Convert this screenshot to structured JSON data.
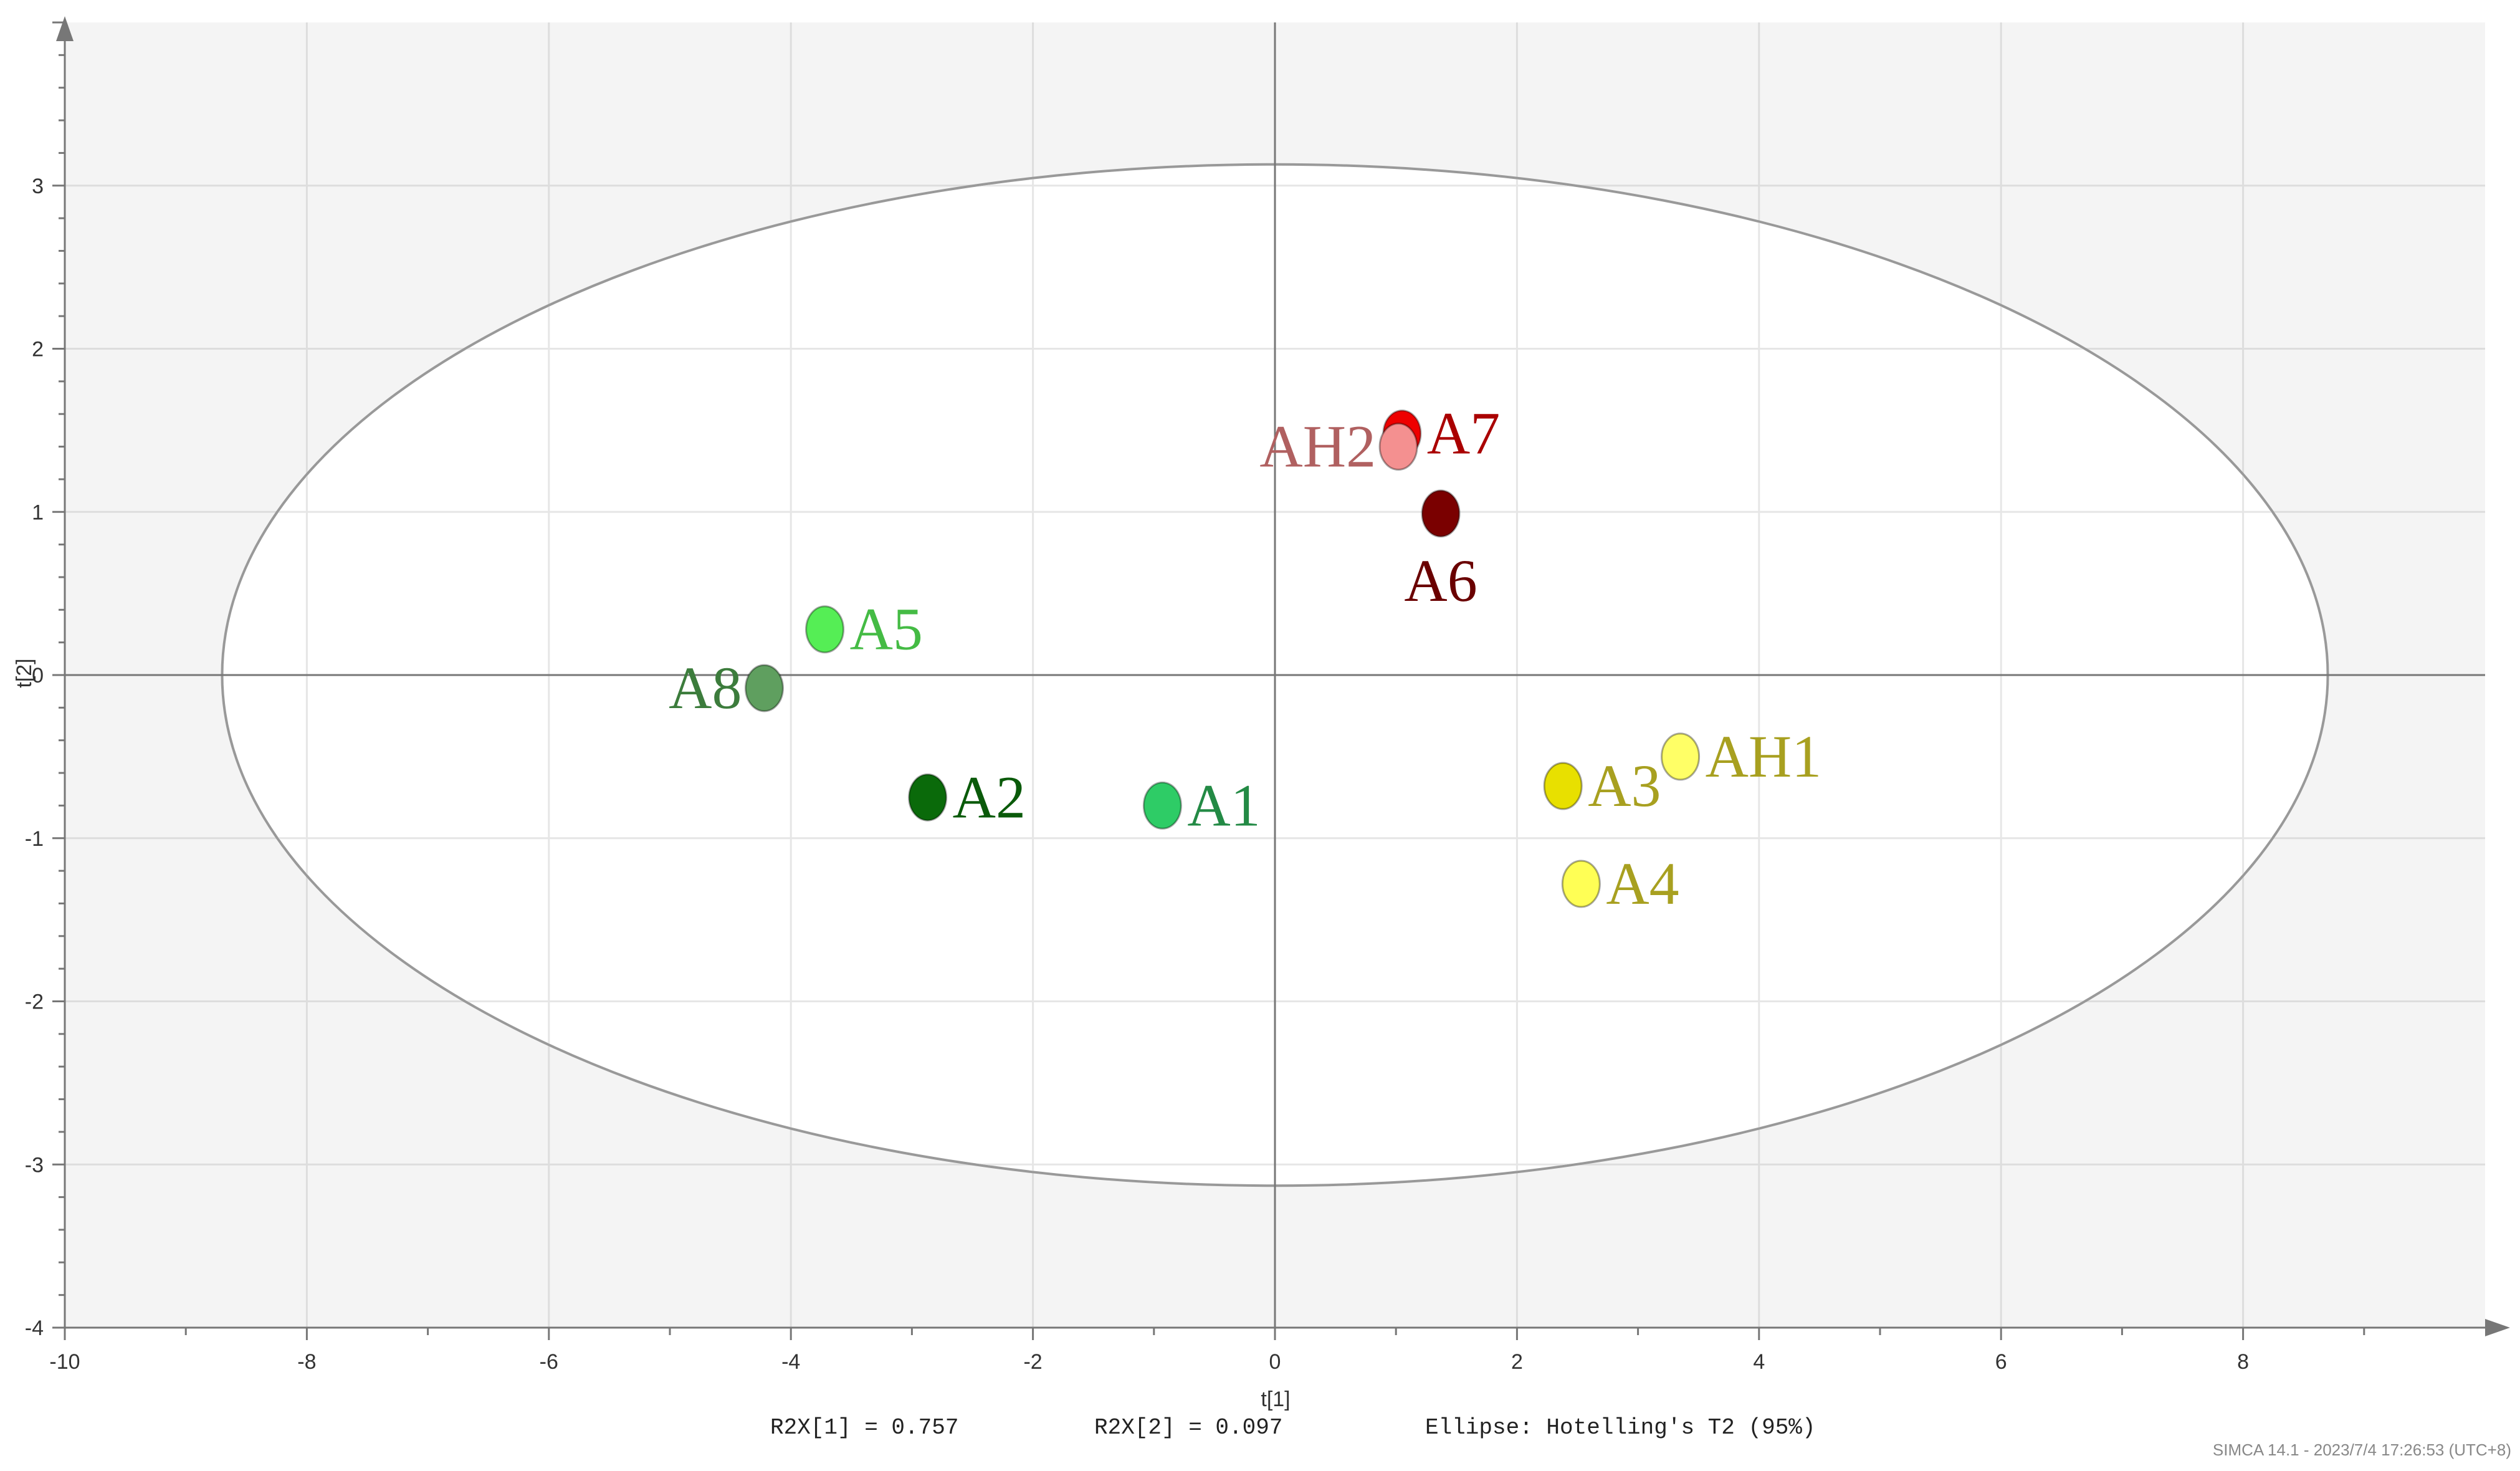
{
  "chart_data": {
    "type": "scatter",
    "title": "",
    "xlabel": "t[1]",
    "ylabel": "t[2]",
    "xlim": [
      -10,
      10
    ],
    "ylim": [
      -4,
      4
    ],
    "x_ticks": [
      -10,
      -8,
      -6,
      -4,
      -2,
      0,
      2,
      4,
      6,
      8
    ],
    "y_ticks": [
      -4,
      -3,
      -2,
      -1,
      0,
      1,
      2,
      3
    ],
    "grid": true,
    "ellipse": {
      "center": [
        0,
        0
      ],
      "semi_axis_x": 8.7,
      "semi_axis_y": 3.13,
      "label": "Ellipse: Hotelling's T2 (95%)"
    },
    "points": [
      {
        "name": "A7",
        "x": 1.05,
        "y": 1.48,
        "color": "#ee0000",
        "label_color": "#aa0000",
        "label_pos": "right"
      },
      {
        "name": "AH2",
        "x": 1.02,
        "y": 1.4,
        "color": "#f49090",
        "label_color": "#b06060",
        "label_pos": "left"
      },
      {
        "name": "A6",
        "x": 1.37,
        "y": 0.99,
        "color": "#7a0000",
        "label_color": "#6a0000",
        "label_pos": "below"
      },
      {
        "name": "A5",
        "x": -3.72,
        "y": 0.28,
        "color": "#55ee55",
        "label_color": "#44bb44",
        "label_pos": "right"
      },
      {
        "name": "A8",
        "x": -4.22,
        "y": -0.08,
        "color": "#5f9f5f",
        "label_color": "#3c7c3c",
        "label_pos": "left"
      },
      {
        "name": "A2",
        "x": -2.87,
        "y": -0.75,
        "color": "#0a6a0a",
        "label_color": "#0a5a0a",
        "label_pos": "right"
      },
      {
        "name": "A1",
        "x": -0.93,
        "y": -0.8,
        "color": "#2ecc66",
        "label_color": "#238a45",
        "label_pos": "right"
      },
      {
        "name": "A3",
        "x": 2.38,
        "y": -0.68,
        "color": "#e8e000",
        "label_color": "#a8a020",
        "label_pos": "right"
      },
      {
        "name": "AH1",
        "x": 3.35,
        "y": -0.5,
        "color": "#ffff66",
        "label_color": "#a8a020",
        "label_pos": "right"
      },
      {
        "name": "A4",
        "x": 2.53,
        "y": -1.28,
        "color": "#ffff55",
        "label_color": "#a8a020",
        "label_pos": "right"
      }
    ],
    "annotations": {
      "r2x1": "R2X[1] = 0.757",
      "r2x2": "R2X[2] = 0.097",
      "ellipse_note": "Ellipse: Hotelling's T2 (95%)",
      "software": "SIMCA 14.1 - 2023/7/4 17:26:53 (UTC+8)"
    },
    "colors": {
      "plot_bg": "#f4f4f4",
      "ellipse_fill": "#ffffff",
      "ellipse_stroke": "#999999",
      "grid": "#dddddd",
      "axis": "#777777"
    }
  }
}
